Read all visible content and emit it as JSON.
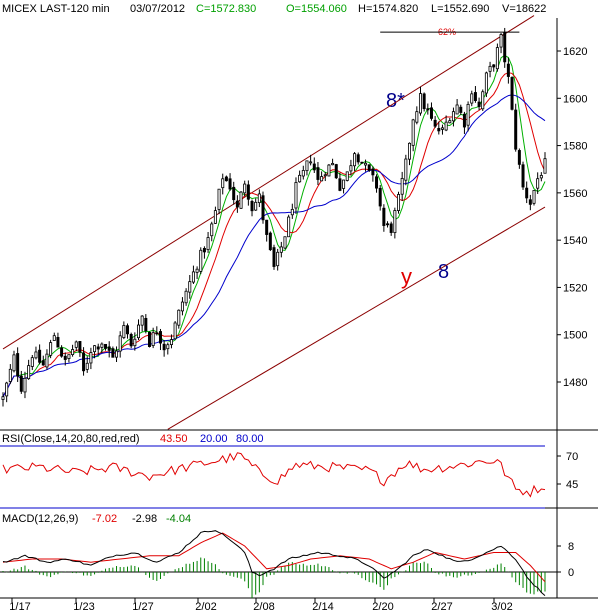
{
  "header": {
    "symbol": "MICEX LAST-120 min",
    "date": "03/07/2012",
    "close": "C=1572.830",
    "open": "O=1554.060",
    "high": "H=1574.820",
    "low": "L=1552.690",
    "volume": "V=18622"
  },
  "rsi_header": {
    "name": "RSI(Close,14,20,80,red,red)",
    "value": "43.50",
    "low": "20.00",
    "high": "80.00"
  },
  "macd_header": {
    "name": "MACD(12,26,9)",
    "macd": "-7.02",
    "signal": "-2.98",
    "hist": "-4.04"
  },
  "annotations": {
    "wave_a": "8*",
    "wave_y": "y",
    "wave_b": "8",
    "fib": "62%"
  },
  "colors": {
    "background": "#ffffff",
    "candle": "#000000",
    "channel": "#8b0000",
    "ma_green": "#00b000",
    "ma_red": "#e00000",
    "ma_blue": "#0000cc",
    "rsi": "#e00000",
    "rsi_bound": "#0000cc",
    "macd_line": "#000000",
    "signal_line": "#e00000",
    "hist": "#008000",
    "grid": "#000000"
  },
  "chart_data": [
    {
      "type": "candlestick",
      "title": "MICEX LAST-120 min",
      "x_ticks": [
        "1/17",
        "1/23",
        "1/27",
        "2/02",
        "2/08",
        "2/14",
        "2/20",
        "2/27",
        "3/02"
      ],
      "y_ticks": [
        1480,
        1500,
        1520,
        1540,
        1560,
        1580,
        1600,
        1620
      ],
      "ylim": [
        1455,
        1634
      ],
      "close_path": [
        [
          0,
          1473
        ],
        [
          3,
          1490
        ],
        [
          5,
          1478
        ],
        [
          8,
          1492
        ],
        [
          11,
          1487
        ],
        [
          14,
          1500
        ],
        [
          17,
          1488
        ],
        [
          20,
          1497
        ],
        [
          22,
          1484
        ],
        [
          24,
          1494
        ],
        [
          27,
          1497
        ],
        [
          30,
          1490
        ],
        [
          33,
          1503
        ],
        [
          35,
          1496
        ],
        [
          38,
          1508
        ],
        [
          40,
          1497
        ],
        [
          42,
          1502
        ],
        [
          44,
          1495
        ],
        [
          46,
          1499
        ],
        [
          49,
          1514
        ],
        [
          51,
          1522
        ],
        [
          53,
          1530
        ],
        [
          56,
          1540
        ],
        [
          58,
          1552
        ],
        [
          60,
          1567
        ],
        [
          62,
          1563
        ],
        [
          64,
          1553
        ],
        [
          66,
          1565
        ],
        [
          68,
          1554
        ],
        [
          70,
          1558
        ],
        [
          72,
          1541
        ],
        [
          74,
          1528
        ],
        [
          76,
          1537
        ],
        [
          78,
          1548
        ],
        [
          80,
          1562
        ],
        [
          82,
          1568
        ],
        [
          84,
          1575
        ],
        [
          86,
          1565
        ],
        [
          88,
          1570
        ],
        [
          90,
          1572
        ],
        [
          92,
          1563
        ],
        [
          94,
          1568
        ],
        [
          96,
          1578
        ],
        [
          98,
          1573
        ],
        [
          100,
          1568
        ],
        [
          102,
          1563
        ],
        [
          104,
          1546
        ],
        [
          106,
          1545
        ],
        [
          108,
          1557
        ],
        [
          110,
          1572
        ],
        [
          112,
          1592
        ],
        [
          114,
          1600
        ],
        [
          116,
          1594
        ],
        [
          118,
          1587
        ],
        [
          120,
          1586
        ],
        [
          122,
          1593
        ],
        [
          124,
          1597
        ],
        [
          126,
          1590
        ],
        [
          128,
          1604
        ],
        [
          130,
          1596
        ],
        [
          132,
          1609
        ],
        [
          134,
          1615
        ],
        [
          136,
          1625
        ],
        [
          138,
          1608
        ],
        [
          140,
          1580
        ],
        [
          142,
          1562
        ],
        [
          144,
          1556
        ],
        [
          146,
          1566
        ],
        [
          148,
          1572
        ]
      ],
      "bar_count": 149,
      "moving_averages": [
        {
          "color": "#00b000",
          "period": 5
        },
        {
          "color": "#e00000",
          "period": 10
        },
        {
          "color": "#0000cc",
          "period": 21
        }
      ],
      "channel": {
        "upper": [
          [
            0,
            1494
          ],
          [
            145,
            1635
          ]
        ],
        "lower": [
          [
            45,
            1460
          ],
          [
            148,
            1554
          ]
        ]
      },
      "fib_line": {
        "y": 1628,
        "x_from": 103,
        "x_to": 141
      }
    },
    {
      "type": "line",
      "title": "RSI(Close,14,20,80,red,red)",
      "y_ticks": [
        45,
        70
      ],
      "ylim": [
        25,
        80
      ],
      "bounds": [
        20,
        80
      ],
      "value_path": [
        [
          0,
          58
        ],
        [
          10,
          60
        ],
        [
          20,
          55
        ],
        [
          30,
          60
        ],
        [
          40,
          52
        ],
        [
          50,
          60
        ],
        [
          60,
          67
        ],
        [
          65,
          70
        ],
        [
          70,
          55
        ],
        [
          75,
          48
        ],
        [
          80,
          62
        ],
        [
          90,
          60
        ],
        [
          100,
          57
        ],
        [
          104,
          48
        ],
        [
          110,
          64
        ],
        [
          115,
          58
        ],
        [
          125,
          62
        ],
        [
          130,
          65
        ],
        [
          135,
          66
        ],
        [
          140,
          40
        ],
        [
          144,
          38
        ],
        [
          148,
          44
        ]
      ]
    },
    {
      "type": "line",
      "title": "MACD(12,26,9)",
      "y_ticks": [
        0,
        8
      ],
      "ylim": [
        -3,
        16
      ],
      "macd_path": [
        [
          0,
          3
        ],
        [
          6,
          5
        ],
        [
          12,
          3
        ],
        [
          18,
          4
        ],
        [
          24,
          2
        ],
        [
          30,
          5
        ],
        [
          36,
          6
        ],
        [
          42,
          3
        ],
        [
          48,
          6
        ],
        [
          54,
          12
        ],
        [
          58,
          13
        ],
        [
          62,
          10
        ],
        [
          66,
          6
        ],
        [
          68,
          0
        ],
        [
          70,
          -1
        ],
        [
          74,
          1
        ],
        [
          78,
          4
        ],
        [
          82,
          5
        ],
        [
          86,
          6
        ],
        [
          92,
          5
        ],
        [
          96,
          4
        ],
        [
          100,
          2
        ],
        [
          104,
          -2
        ],
        [
          108,
          1
        ],
        [
          112,
          5
        ],
        [
          116,
          7
        ],
        [
          120,
          5
        ],
        [
          124,
          3
        ],
        [
          128,
          4
        ],
        [
          132,
          6
        ],
        [
          136,
          8
        ],
        [
          140,
          4
        ],
        [
          144,
          -3
        ],
        [
          148,
          -7
        ]
      ],
      "signal_path": [
        [
          0,
          3
        ],
        [
          8,
          4
        ],
        [
          16,
          4
        ],
        [
          24,
          3
        ],
        [
          32,
          4
        ],
        [
          40,
          5
        ],
        [
          48,
          5
        ],
        [
          54,
          9
        ],
        [
          60,
          12
        ],
        [
          66,
          8
        ],
        [
          72,
          1
        ],
        [
          78,
          2
        ],
        [
          84,
          4
        ],
        [
          92,
          5
        ],
        [
          100,
          4
        ],
        [
          106,
          1
        ],
        [
          112,
          3
        ],
        [
          118,
          6
        ],
        [
          126,
          4
        ],
        [
          134,
          6
        ],
        [
          140,
          6
        ],
        [
          144,
          2
        ],
        [
          148,
          -3
        ]
      ]
    }
  ]
}
